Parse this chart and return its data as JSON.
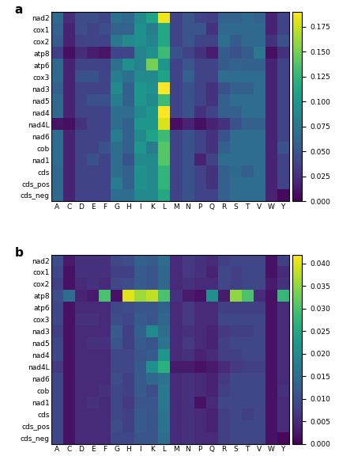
{
  "rows": [
    "nad2",
    "cox1",
    "cox2",
    "atp8",
    "atp6",
    "cox3",
    "nad3",
    "nad5",
    "nad4",
    "nad4L",
    "nad6",
    "cob",
    "nad1",
    "cds",
    "cds_pos",
    "cds_neg"
  ],
  "cols": [
    "A",
    "C",
    "D",
    "E",
    "F",
    "G",
    "H",
    "I",
    "K",
    "L",
    "M",
    "N",
    "P",
    "Q",
    "R",
    "S",
    "T",
    "V",
    "W",
    "Y"
  ],
  "panel_a_label": "a",
  "panel_b_label": "b",
  "panel_a_vmax": 0.19,
  "panel_b_vmax": 0.042,
  "colormap": "viridis",
  "data_a": [
    [
      0.065,
      0.025,
      0.045,
      0.045,
      0.04,
      0.07,
      0.065,
      0.09,
      0.11,
      0.185,
      0.038,
      0.05,
      0.038,
      0.035,
      0.06,
      0.06,
      0.065,
      0.06,
      0.018,
      0.038
    ],
    [
      0.06,
      0.018,
      0.045,
      0.04,
      0.045,
      0.06,
      0.06,
      0.095,
      0.08,
      0.115,
      0.038,
      0.05,
      0.05,
      0.028,
      0.065,
      0.065,
      0.065,
      0.065,
      0.018,
      0.038
    ],
    [
      0.055,
      0.018,
      0.038,
      0.04,
      0.038,
      0.075,
      0.09,
      0.095,
      0.085,
      0.115,
      0.038,
      0.05,
      0.038,
      0.038,
      0.07,
      0.055,
      0.065,
      0.065,
      0.028,
      0.048
    ],
    [
      0.035,
      0.008,
      0.025,
      0.015,
      0.01,
      0.038,
      0.04,
      0.085,
      0.095,
      0.13,
      0.048,
      0.038,
      0.028,
      0.015,
      0.055,
      0.048,
      0.055,
      0.075,
      0.008,
      0.028
    ],
    [
      0.065,
      0.018,
      0.038,
      0.038,
      0.038,
      0.07,
      0.095,
      0.085,
      0.15,
      0.1,
      0.038,
      0.05,
      0.038,
      0.038,
      0.055,
      0.06,
      0.058,
      0.058,
      0.018,
      0.038
    ],
    [
      0.065,
      0.018,
      0.048,
      0.048,
      0.038,
      0.08,
      0.07,
      0.09,
      0.09,
      0.11,
      0.038,
      0.058,
      0.038,
      0.038,
      0.068,
      0.068,
      0.068,
      0.068,
      0.018,
      0.038
    ],
    [
      0.058,
      0.018,
      0.038,
      0.038,
      0.038,
      0.09,
      0.058,
      0.1,
      0.095,
      0.19,
      0.038,
      0.048,
      0.038,
      0.028,
      0.048,
      0.058,
      0.058,
      0.068,
      0.018,
      0.038
    ],
    [
      0.065,
      0.018,
      0.038,
      0.048,
      0.048,
      0.08,
      0.058,
      0.1,
      0.09,
      0.13,
      0.038,
      0.048,
      0.038,
      0.028,
      0.058,
      0.068,
      0.068,
      0.068,
      0.018,
      0.038
    ],
    [
      0.065,
      0.018,
      0.038,
      0.038,
      0.038,
      0.068,
      0.068,
      0.09,
      0.1,
      0.19,
      0.038,
      0.048,
      0.028,
      0.038,
      0.058,
      0.058,
      0.068,
      0.068,
      0.018,
      0.038
    ],
    [
      0.01,
      0.008,
      0.028,
      0.038,
      0.038,
      0.068,
      0.058,
      0.1,
      0.1,
      0.18,
      0.008,
      0.018,
      0.008,
      0.018,
      0.028,
      0.048,
      0.058,
      0.058,
      0.018,
      0.038
    ],
    [
      0.068,
      0.018,
      0.038,
      0.038,
      0.038,
      0.08,
      0.058,
      0.09,
      0.11,
      0.13,
      0.038,
      0.048,
      0.038,
      0.028,
      0.048,
      0.068,
      0.068,
      0.068,
      0.018,
      0.038
    ],
    [
      0.068,
      0.018,
      0.038,
      0.038,
      0.048,
      0.068,
      0.058,
      0.1,
      0.078,
      0.14,
      0.038,
      0.048,
      0.038,
      0.028,
      0.058,
      0.068,
      0.068,
      0.068,
      0.018,
      0.048
    ],
    [
      0.068,
      0.018,
      0.038,
      0.048,
      0.038,
      0.068,
      0.048,
      0.09,
      0.09,
      0.14,
      0.038,
      0.048,
      0.018,
      0.038,
      0.068,
      0.068,
      0.068,
      0.068,
      0.018,
      0.038
    ],
    [
      0.065,
      0.018,
      0.038,
      0.038,
      0.038,
      0.068,
      0.058,
      0.095,
      0.09,
      0.125,
      0.038,
      0.048,
      0.038,
      0.028,
      0.058,
      0.065,
      0.058,
      0.068,
      0.018,
      0.038
    ],
    [
      0.065,
      0.018,
      0.038,
      0.038,
      0.038,
      0.078,
      0.058,
      0.095,
      0.09,
      0.125,
      0.038,
      0.048,
      0.038,
      0.028,
      0.058,
      0.068,
      0.068,
      0.068,
      0.018,
      0.038
    ],
    [
      0.065,
      0.018,
      0.038,
      0.038,
      0.038,
      0.068,
      0.068,
      0.09,
      0.09,
      0.115,
      0.038,
      0.048,
      0.038,
      0.038,
      0.058,
      0.068,
      0.068,
      0.068,
      0.018,
      0.005
    ]
  ],
  "data_b": [
    [
      0.01,
      0.003,
      0.006,
      0.006,
      0.006,
      0.009,
      0.01,
      0.013,
      0.012,
      0.015,
      0.005,
      0.007,
      0.006,
      0.005,
      0.008,
      0.009,
      0.009,
      0.009,
      0.002,
      0.008
    ],
    [
      0.009,
      0.002,
      0.006,
      0.006,
      0.006,
      0.008,
      0.008,
      0.012,
      0.011,
      0.014,
      0.005,
      0.007,
      0.006,
      0.004,
      0.009,
      0.008,
      0.009,
      0.009,
      0.002,
      0.005
    ],
    [
      0.008,
      0.002,
      0.005,
      0.006,
      0.005,
      0.009,
      0.01,
      0.012,
      0.011,
      0.014,
      0.005,
      0.006,
      0.005,
      0.005,
      0.009,
      0.008,
      0.009,
      0.009,
      0.003,
      0.006
    ],
    [
      0.01,
      0.015,
      0.004,
      0.003,
      0.03,
      0.002,
      0.04,
      0.036,
      0.038,
      0.03,
      0.006,
      0.003,
      0.002,
      0.021,
      0.003,
      0.035,
      0.03,
      0.005,
      0.002,
      0.028
    ],
    [
      0.009,
      0.002,
      0.005,
      0.005,
      0.005,
      0.009,
      0.01,
      0.011,
      0.011,
      0.013,
      0.005,
      0.007,
      0.005,
      0.005,
      0.008,
      0.008,
      0.008,
      0.008,
      0.002,
      0.005
    ],
    [
      0.009,
      0.002,
      0.006,
      0.006,
      0.005,
      0.01,
      0.009,
      0.012,
      0.011,
      0.014,
      0.005,
      0.007,
      0.005,
      0.005,
      0.009,
      0.009,
      0.009,
      0.009,
      0.002,
      0.005
    ],
    [
      0.008,
      0.002,
      0.005,
      0.005,
      0.005,
      0.012,
      0.008,
      0.013,
      0.02,
      0.015,
      0.005,
      0.006,
      0.005,
      0.004,
      0.007,
      0.008,
      0.008,
      0.009,
      0.002,
      0.005
    ],
    [
      0.009,
      0.002,
      0.005,
      0.006,
      0.006,
      0.011,
      0.008,
      0.012,
      0.011,
      0.016,
      0.005,
      0.007,
      0.005,
      0.004,
      0.008,
      0.009,
      0.009,
      0.009,
      0.002,
      0.005
    ],
    [
      0.009,
      0.002,
      0.005,
      0.005,
      0.005,
      0.009,
      0.009,
      0.011,
      0.012,
      0.022,
      0.005,
      0.006,
      0.004,
      0.005,
      0.008,
      0.008,
      0.009,
      0.009,
      0.002,
      0.005
    ],
    [
      0.007,
      0.002,
      0.005,
      0.005,
      0.005,
      0.009,
      0.009,
      0.012,
      0.021,
      0.027,
      0.003,
      0.003,
      0.002,
      0.003,
      0.005,
      0.007,
      0.008,
      0.008,
      0.002,
      0.005
    ],
    [
      0.009,
      0.002,
      0.005,
      0.005,
      0.005,
      0.01,
      0.008,
      0.012,
      0.014,
      0.016,
      0.005,
      0.006,
      0.005,
      0.004,
      0.007,
      0.009,
      0.009,
      0.009,
      0.002,
      0.005
    ],
    [
      0.009,
      0.002,
      0.005,
      0.005,
      0.006,
      0.009,
      0.008,
      0.012,
      0.01,
      0.017,
      0.005,
      0.006,
      0.005,
      0.004,
      0.008,
      0.009,
      0.009,
      0.009,
      0.002,
      0.006
    ],
    [
      0.009,
      0.002,
      0.005,
      0.006,
      0.005,
      0.009,
      0.007,
      0.011,
      0.011,
      0.017,
      0.005,
      0.006,
      0.002,
      0.005,
      0.009,
      0.009,
      0.009,
      0.009,
      0.002,
      0.005
    ],
    [
      0.009,
      0.002,
      0.005,
      0.005,
      0.005,
      0.009,
      0.008,
      0.012,
      0.011,
      0.016,
      0.005,
      0.006,
      0.005,
      0.004,
      0.008,
      0.009,
      0.008,
      0.009,
      0.002,
      0.005
    ],
    [
      0.009,
      0.002,
      0.005,
      0.005,
      0.005,
      0.01,
      0.008,
      0.012,
      0.011,
      0.016,
      0.005,
      0.006,
      0.005,
      0.004,
      0.008,
      0.009,
      0.009,
      0.009,
      0.002,
      0.005
    ],
    [
      0.009,
      0.002,
      0.005,
      0.005,
      0.005,
      0.009,
      0.009,
      0.011,
      0.011,
      0.015,
      0.005,
      0.006,
      0.005,
      0.005,
      0.008,
      0.009,
      0.009,
      0.009,
      0.002,
      0.001
    ]
  ]
}
